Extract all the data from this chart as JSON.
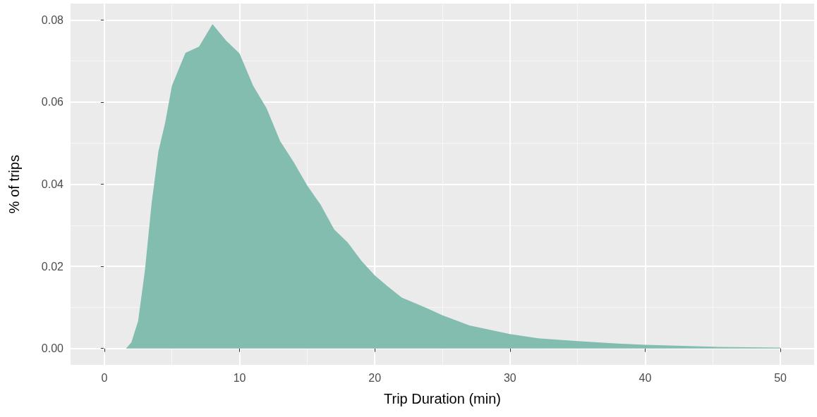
{
  "chart_data": {
    "type": "area",
    "xlabel": "Trip Duration (min)",
    "ylabel": "% of trips",
    "x": [
      1.6,
      2,
      2.5,
      3,
      3.5,
      4,
      4.5,
      5,
      6,
      7,
      8,
      9,
      10,
      11,
      12,
      13,
      14,
      15,
      16,
      17,
      18,
      19,
      20,
      21,
      22,
      23,
      24,
      25,
      27,
      30,
      32,
      35,
      38,
      40,
      45,
      50
    ],
    "series": [
      {
        "color": "#83bdb0",
        "values": [
          0,
          0.0015,
          0.0067,
          0.019,
          0.0355,
          0.048,
          0.055,
          0.064,
          0.072,
          0.0735,
          0.079,
          0.075,
          0.0718,
          0.064,
          0.0585,
          0.0505,
          0.0454,
          0.0397,
          0.035,
          0.029,
          0.0258,
          0.0214,
          0.0178,
          0.015,
          0.0124,
          0.011,
          0.0096,
          0.0081,
          0.0056,
          0.0035,
          0.0025,
          0.0018,
          0.0012,
          0.0009,
          0.0004,
          0.0002
        ]
      }
    ],
    "xlim": [
      -2.5,
      52.5
    ],
    "xticks": [
      0,
      10,
      20,
      30,
      40,
      50
    ],
    "ylim": [
      -0.004,
      0.084
    ],
    "yticks": [
      {
        "value": 0,
        "label": "0.00"
      },
      {
        "value": 0.02,
        "label": "0.02"
      },
      {
        "value": 0.04,
        "label": "0.04"
      },
      {
        "value": 0.06,
        "label": "0.06"
      },
      {
        "value": 0.08,
        "label": "0.08"
      }
    ],
    "grid": true,
    "marker": "none"
  }
}
